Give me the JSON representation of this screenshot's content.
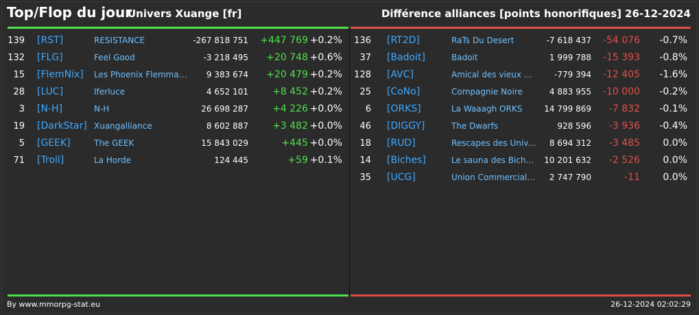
{
  "header": {
    "title": "Top/Flop du jour",
    "universe": "Univers Xuange [fr]",
    "subject": "Différence alliances [points honorifiques]",
    "date": "26-12-2024"
  },
  "colors": {
    "top": "#4ee04e",
    "flop": "#e0504a",
    "tag": "#3fa9ff"
  },
  "top": [
    {
      "rank": "139",
      "tag": "[RST]",
      "name": "RESISTANCE",
      "points": "-267 818 751",
      "diff": "+447 769",
      "pct": "+0.2%"
    },
    {
      "rank": "132",
      "tag": "[FLG]",
      "name": "Feel Good",
      "points": "-3 218 495",
      "diff": "+20 748",
      "pct": "+0.6%"
    },
    {
      "rank": "15",
      "tag": "[FlemNix]",
      "name": "Les Phoenix Flemmards",
      "points": "9 383 674",
      "diff": "+20 479",
      "pct": "+0.2%"
    },
    {
      "rank": "28",
      "tag": "[LUC]",
      "name": "Iferluce",
      "points": "4 652 101",
      "diff": "+8 452",
      "pct": "+0.2%"
    },
    {
      "rank": "3",
      "tag": "[N-H]",
      "name": "N-H",
      "points": "26 698 287",
      "diff": "+4 226",
      "pct": "+0.0%"
    },
    {
      "rank": "19",
      "tag": "[DarkStar]",
      "name": "Xuangalliance",
      "points": "8 602 887",
      "diff": "+3 482",
      "pct": "+0.0%"
    },
    {
      "rank": "5",
      "tag": "[GEEK]",
      "name": "The GEEK",
      "points": "15 843 029",
      "diff": "+445",
      "pct": "+0.0%"
    },
    {
      "rank": "71",
      "tag": "[Troll]",
      "name": "La Horde",
      "points": "124 445",
      "diff": "+59",
      "pct": "+0.1%"
    }
  ],
  "flop": [
    {
      "rank": "136",
      "tag": "[RT2D]",
      "name": "RaTs Du Desert",
      "points": "-7 618 437",
      "diff": "-54 076",
      "pct": "-0.7%"
    },
    {
      "rank": "37",
      "tag": "[Badoit]",
      "name": "Badoit",
      "points": "1 999 788",
      "diff": "-15 393",
      "pct": "-0.8%"
    },
    {
      "rank": "128",
      "tag": "[AVC]",
      "name": "Amical des vieux co...",
      "points": "-779 394",
      "diff": "-12 405",
      "pct": "-1.6%"
    },
    {
      "rank": "25",
      "tag": "[CoNo]",
      "name": "Compagnie Noire",
      "points": "4 883 955",
      "diff": "-10 000",
      "pct": "-0.2%"
    },
    {
      "rank": "6",
      "tag": "[ORKS]",
      "name": "La Waaagh ORKS",
      "points": "14 799 869",
      "diff": "-7 832",
      "pct": "-0.1%"
    },
    {
      "rank": "46",
      "tag": "[DIGGY]",
      "name": "The Dwarfs",
      "points": "928 596",
      "diff": "-3 936",
      "pct": "-0.4%"
    },
    {
      "rank": "18",
      "tag": "[RUD]",
      "name": "Rescapes des Univ...",
      "points": "8 694 312",
      "diff": "-3 485",
      "pct": "0.0%"
    },
    {
      "rank": "14",
      "tag": "[Biches]",
      "name": "Le sauna des Biche...",
      "points": "10 201 632",
      "diff": "-2 526",
      "pct": "0.0%"
    },
    {
      "rank": "35",
      "tag": "[UCG]",
      "name": "Union Commerciale...",
      "points": "2 747 790",
      "diff": "-11",
      "pct": "0.0%"
    }
  ],
  "footer": {
    "source": "By www.mmorpg-stat.eu",
    "generated": "26-12-2024 02:02:29"
  }
}
